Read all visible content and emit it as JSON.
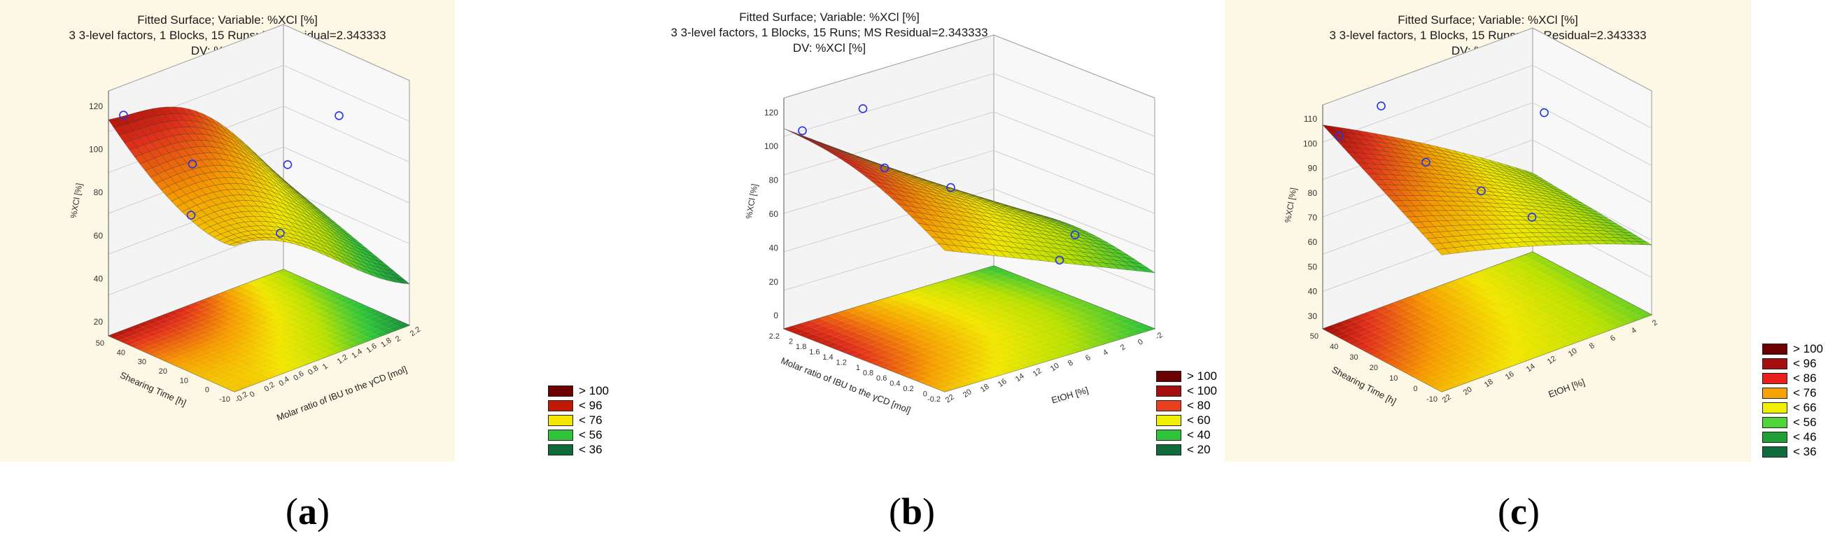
{
  "chart_data": [
    {
      "type": "surface3d",
      "panel": "a",
      "title": "Fitted Surface; Variable: %XCl [%]",
      "subtitle": "3 3-level factors, 1 Blocks, 15 Runs; MS Residual=2.343333",
      "dv_label": "DV: %XCl [%]",
      "zlabel": "%XCl [%]",
      "xlabel": "Molar ratio of IBU to the γCD [mol]",
      "ylabel": "Shearing Time [h]",
      "z_ticks": [
        "120",
        "100",
        "80",
        "60",
        "40",
        "20"
      ],
      "x_ticks": [
        "-0.2",
        "0",
        "0.2",
        "0.4",
        "0.6",
        "0.8",
        "1",
        "1.2",
        "1.4",
        "1.6",
        "1.8",
        "2",
        "2.2"
      ],
      "y_ticks": [
        "-10",
        "0",
        "10",
        "20",
        "30",
        "40",
        "50"
      ],
      "legend": [
        {
          "label": "> 100",
          "color": "#6b0000"
        },
        {
          "label": "< 96",
          "color": "#c21807"
        },
        {
          "label": "< 76",
          "color": "#f2e600"
        },
        {
          "label": "< 56",
          "color": "#2fc43a"
        },
        {
          "label": "< 36",
          "color": "#0f6b3a"
        }
      ]
    },
    {
      "type": "surface3d",
      "panel": "b",
      "title": "Fitted Surface; Variable: %XCl [%]",
      "subtitle": "3 3-level factors, 1 Blocks, 15 Runs; MS Residual=2.343333",
      "dv_label": "DV: %XCl [%]",
      "zlabel": "%XCl [%]",
      "xlabel": "EtOH [%]",
      "ylabel": "Molar ratio of IBU to the γCD [mol]",
      "z_ticks": [
        "120",
        "100",
        "80",
        "60",
        "40",
        "20",
        "0"
      ],
      "x_ticks": [
        "22",
        "20",
        "18",
        "16",
        "14",
        "12",
        "10",
        "8",
        "6",
        "4",
        "2",
        "0",
        "-2"
      ],
      "y_ticks": [
        "-0.2",
        "0",
        "0.2",
        "0.4",
        "0.6",
        "0.8",
        "1",
        "1.2",
        "1.4",
        "1.6",
        "1.8",
        "2",
        "2.2"
      ],
      "legend": [
        {
          "label": "> 100",
          "color": "#6b0000"
        },
        {
          "label": "< 100",
          "color": "#a50f0f"
        },
        {
          "label": "< 80",
          "color": "#e8401c"
        },
        {
          "label": "< 60",
          "color": "#eef000"
        },
        {
          "label": "< 40",
          "color": "#2fc43a"
        },
        {
          "label": "< 20",
          "color": "#0f6b3a"
        }
      ]
    },
    {
      "type": "surface3d",
      "panel": "c",
      "title": "Fitted Surface; Variable: %XCl [%]",
      "subtitle": "3 3-level factors, 1 Blocks, 15 Runs; MS Residual=2.343333",
      "dv_label": "DV: %XCl [%]",
      "zlabel": "%XCl [%]",
      "xlabel": "EtOH [%]",
      "ylabel": "Shearing Time [h]",
      "z_ticks": [
        "110",
        "100",
        "90",
        "80",
        "70",
        "60",
        "50",
        "40",
        "30"
      ],
      "x_ticks": [
        "22",
        "20",
        "18",
        "16",
        "14",
        "12",
        "10",
        "8",
        "6",
        "4",
        "2"
      ],
      "y_ticks": [
        "-10",
        "0",
        "10",
        "20",
        "30",
        "40",
        "50"
      ],
      "legend": [
        {
          "label": "> 100",
          "color": "#6b0000"
        },
        {
          "label": "< 96",
          "color": "#a50f0f"
        },
        {
          "label": "< 86",
          "color": "#e8201c"
        },
        {
          "label": "< 76",
          "color": "#f5a300"
        },
        {
          "label": "< 66",
          "color": "#eef000"
        },
        {
          "label": "< 56",
          "color": "#4fd43a"
        },
        {
          "label": "< 46",
          "color": "#1f9e3a"
        },
        {
          "label": "< 36",
          "color": "#0f6b3a"
        }
      ]
    }
  ],
  "captions": [
    "a",
    "b",
    "c"
  ]
}
